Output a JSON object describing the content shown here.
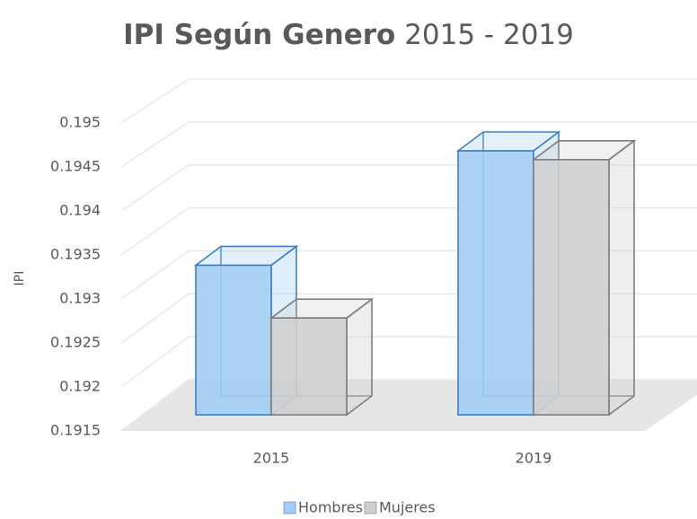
{
  "chart_data": {
    "type": "bar3d",
    "title": [
      "IPI Según Genero",
      "2015 - 2019"
    ],
    "y_label": "IPI",
    "categories": [
      "2015",
      "2019"
    ],
    "series": [
      {
        "name": "Hombres",
        "color": "#a3cdf2",
        "stroke": "#3d80c8",
        "values": [
          0.1932,
          0.1945
        ]
      },
      {
        "name": "Mujeres",
        "color": "#cfcfcf",
        "stroke": "#7f7f7f",
        "values": [
          0.1926,
          0.1944
        ]
      }
    ],
    "ylim": [
      0.1915,
      0.195
    ],
    "yticks": [
      0.1915,
      0.192,
      0.1925,
      0.193,
      0.1935,
      0.194,
      0.1945,
      0.195
    ],
    "grid": true,
    "legend": "bottom"
  }
}
